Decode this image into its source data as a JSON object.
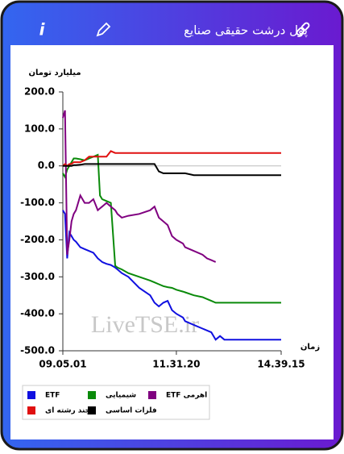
{
  "header": {
    "title": "پول درشت حقیقی صنایع",
    "info_icon": "i"
  },
  "chart_data": {
    "type": "line",
    "y_label": "میلیارد تومان",
    "x_label": "زمان",
    "watermark": "LiveTSE.ir",
    "x": [
      0,
      1,
      2,
      3,
      4,
      5,
      6,
      8,
      10,
      12,
      14,
      16,
      17,
      18,
      20,
      22,
      24,
      25,
      27,
      30,
      35,
      40,
      42,
      44,
      46,
      48,
      50,
      52,
      55,
      56,
      60,
      64,
      66,
      68,
      70,
      72,
      74,
      80,
      100
    ],
    "xlim": [
      0,
      100
    ],
    "xticks": [
      {
        "value": 0,
        "label": "09.05.01"
      },
      {
        "value": 52,
        "label": "11.31.20"
      },
      {
        "value": 100,
        "label": "14.39.15"
      }
    ],
    "ylim": [
      -500,
      200
    ],
    "yticks": [
      {
        "value": 200,
        "label": "200.0"
      },
      {
        "value": 100,
        "label": "100.0"
      },
      {
        "value": 0,
        "label": "0.0"
      },
      {
        "value": -100,
        "label": "-100.0"
      },
      {
        "value": -200,
        "label": "-200.0"
      },
      {
        "value": -300,
        "label": "-300.0"
      },
      {
        "value": -400,
        "label": "-400.0"
      },
      {
        "value": -500,
        "label": "-500.0"
      }
    ],
    "grid": false,
    "series": [
      {
        "name": "ETF",
        "color": "#1010e0",
        "values": [
          -120,
          -130,
          -250,
          -180,
          -190,
          -200,
          -205,
          -220,
          -225,
          -230,
          -235,
          -250,
          -255,
          -260,
          -265,
          -268,
          -275,
          -280,
          -290,
          -300,
          -330,
          -350,
          -370,
          -380,
          -370,
          -365,
          -390,
          -400,
          -410,
          -420,
          -430,
          -440,
          -445,
          -450,
          -470,
          -460,
          -470,
          -470,
          -470
        ]
      },
      {
        "name": "شیمیایی",
        "color": "#0a8a0a",
        "values": [
          -20,
          -30,
          -10,
          0,
          10,
          20,
          20,
          18,
          15,
          20,
          25,
          30,
          -80,
          -90,
          -95,
          -100,
          -270,
          -275,
          -280,
          -290,
          -300,
          -310,
          -315,
          -320,
          -325,
          -328,
          -330,
          -335,
          -340,
          -342,
          -350,
          -355,
          -360,
          -365,
          -370,
          -370,
          -370,
          -370,
          -370
        ]
      },
      {
        "name": "ETF اهرمی",
        "color": "#800080",
        "values": [
          130,
          150,
          -240,
          -200,
          -150,
          -130,
          -120,
          -80,
          -100,
          -100,
          -90,
          -120,
          -115,
          -110,
          -100,
          -110,
          -120,
          -130,
          -140,
          -135,
          -130,
          -120,
          -110,
          -140,
          -150,
          -160,
          -190,
          -200,
          -210,
          -220,
          -230,
          -240,
          -250,
          -255,
          -260,
          null,
          null,
          null,
          null
        ]
      },
      {
        "name": "چند رشته ای",
        "color": "#e01010",
        "values": [
          0,
          5,
          0,
          5,
          5,
          10,
          10,
          10,
          15,
          25,
          25,
          25,
          25,
          25,
          25,
          40,
          35,
          35,
          35,
          35,
          35,
          35,
          35,
          35,
          35,
          35,
          35,
          35,
          35,
          35,
          35,
          35,
          35,
          35,
          35,
          35,
          35,
          35,
          35
        ]
      },
      {
        "name": "فلزات اساسی",
        "color": "#000000",
        "values": [
          0,
          0,
          0,
          0,
          0,
          2,
          2,
          3,
          5,
          5,
          5,
          5,
          5,
          5,
          5,
          5,
          5,
          5,
          5,
          5,
          5,
          5,
          5,
          -15,
          -20,
          -20,
          -20,
          -20,
          -20,
          -20,
          -25,
          -25,
          -25,
          -25,
          -25,
          -25,
          -25,
          -25,
          -25
        ]
      }
    ]
  }
}
